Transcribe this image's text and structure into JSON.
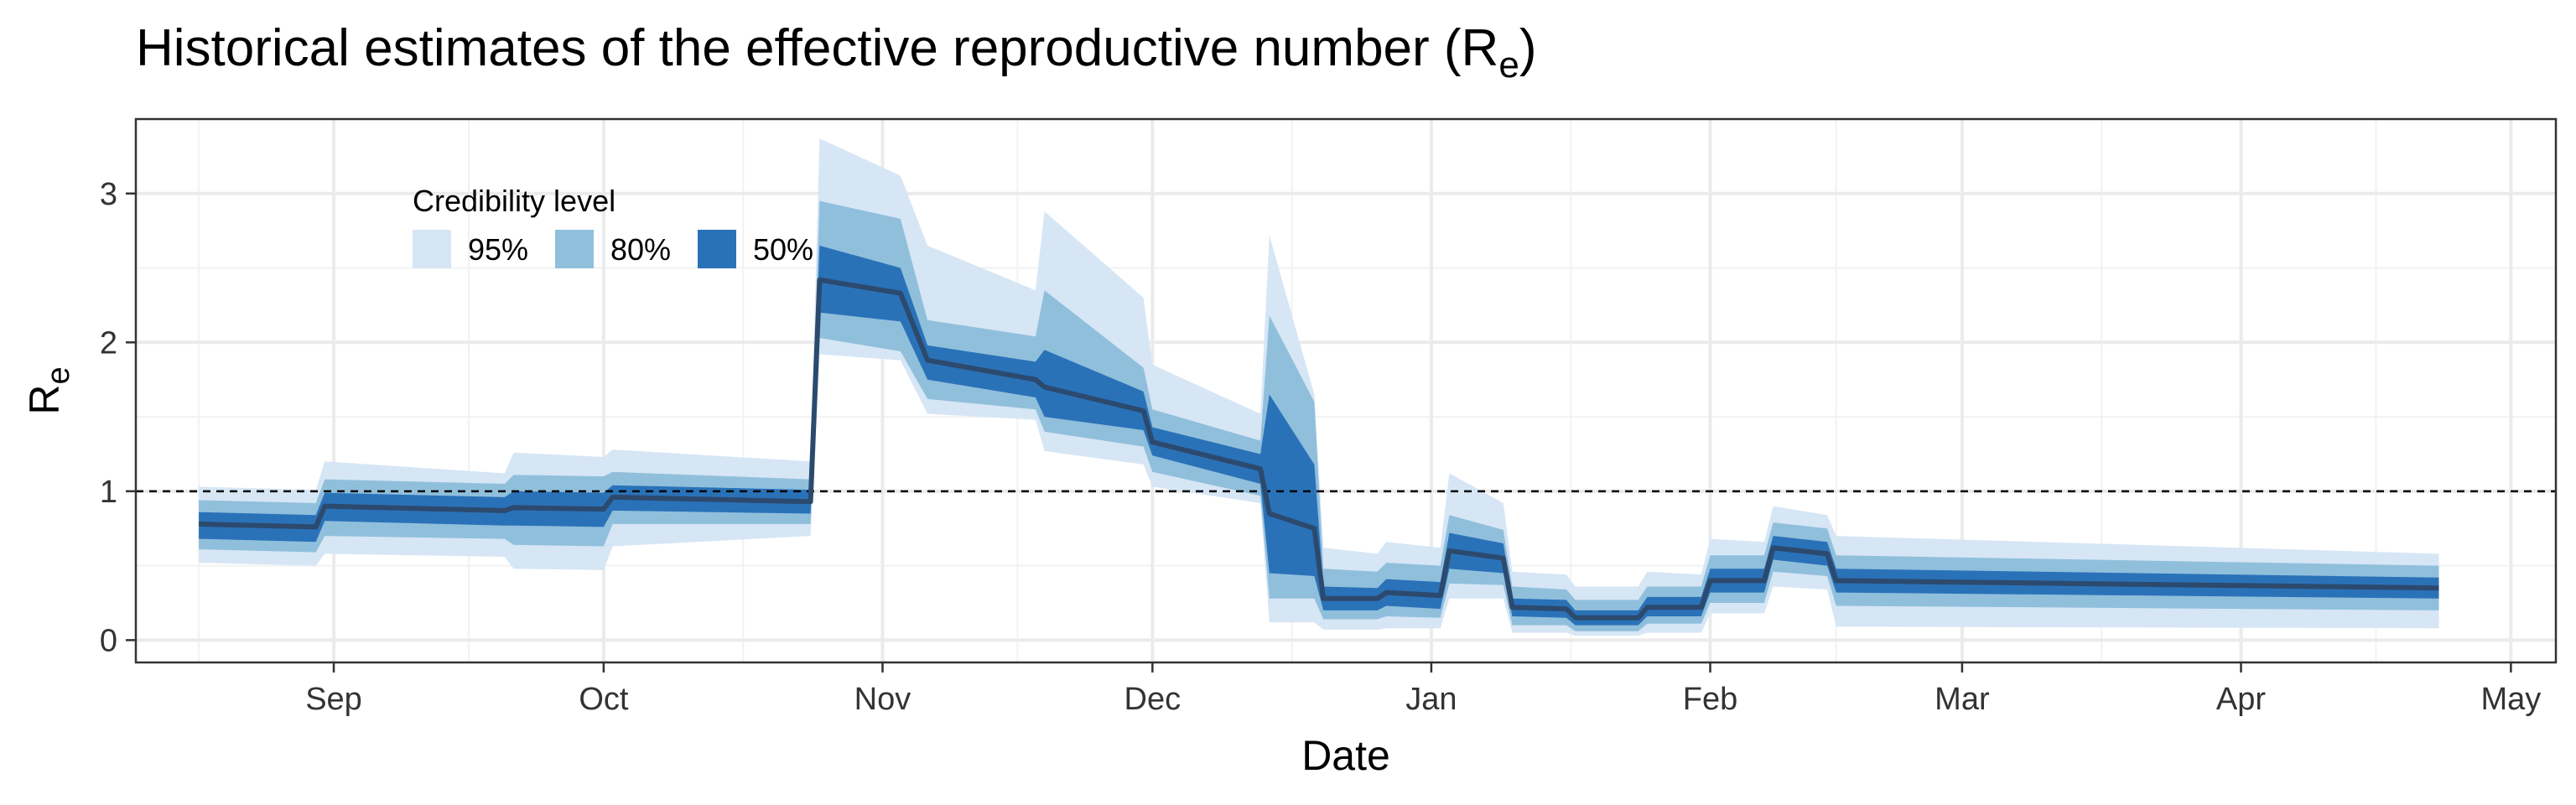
{
  "chart_data": {
    "type": "area",
    "title": "Historical estimates of the effective reproductive number (R",
    "title_subscript": "e",
    "title_suffix": ")",
    "xlabel": "Date",
    "ylabel": "R",
    "ylabel_subscript": "e",
    "xlim": [
      "2020-08-10",
      "2021-05-06"
    ],
    "ylim": [
      -0.15,
      3.5
    ],
    "x_ticks": [
      {
        "date": "2020-09-01",
        "label": "Sep"
      },
      {
        "date": "2020-10-01",
        "label": "Oct"
      },
      {
        "date": "2020-11-01",
        "label": "Nov"
      },
      {
        "date": "2020-12-01",
        "label": "Dec"
      },
      {
        "date": "2021-01-01",
        "label": "Jan"
      },
      {
        "date": "2021-02-01",
        "label": "Feb"
      },
      {
        "date": "2021-03-01",
        "label": "Mar"
      },
      {
        "date": "2021-04-01",
        "label": "Apr"
      },
      {
        "date": "2021-05-01",
        "label": "May"
      }
    ],
    "y_ticks": [
      0,
      1,
      2,
      3
    ],
    "grid": true,
    "reference_line": {
      "y": 1,
      "style": "dashed"
    },
    "legend": {
      "title": "Credibility level",
      "position": "top-left",
      "entries": [
        {
          "label": "95%",
          "color": "#d6e6f5"
        },
        {
          "label": "80%",
          "color": "#90bfdc"
        },
        {
          "label": "50%",
          "color": "#2a72b8"
        }
      ]
    },
    "colors": {
      "median": "#2c4a6e",
      "band95": "#d6e6f5",
      "band80": "#90bfdc",
      "band50": "#2a72b8"
    },
    "series": [
      {
        "x": "2020-08-17",
        "median": 0.78,
        "lo50": 0.68,
        "hi50": 0.86,
        "lo80": 0.61,
        "hi80": 0.94,
        "lo95": 0.52,
        "hi95": 1.03
      },
      {
        "x": "2020-08-30",
        "median": 0.76,
        "lo50": 0.66,
        "hi50": 0.84,
        "lo80": 0.59,
        "hi80": 0.92,
        "lo95": 0.5,
        "hi95": 1.01
      },
      {
        "x": "2020-08-31",
        "median": 0.9,
        "lo50": 0.8,
        "hi50": 0.99,
        "lo80": 0.7,
        "hi80": 1.08,
        "lo95": 0.58,
        "hi95": 1.2
      },
      {
        "x": "2020-09-20",
        "median": 0.87,
        "lo50": 0.77,
        "hi50": 0.96,
        "lo80": 0.68,
        "hi80": 1.05,
        "lo95": 0.56,
        "hi95": 1.12
      },
      {
        "x": "2020-09-21",
        "median": 0.89,
        "lo50": 0.77,
        "hi50": 1.0,
        "lo80": 0.64,
        "hi80": 1.11,
        "lo95": 0.48,
        "hi95": 1.26
      },
      {
        "x": "2020-10-01",
        "median": 0.88,
        "lo50": 0.76,
        "hi50": 0.99,
        "lo80": 0.63,
        "hi80": 1.1,
        "lo95": 0.47,
        "hi95": 1.23
      },
      {
        "x": "2020-10-02",
        "median": 0.96,
        "lo50": 0.87,
        "hi50": 1.04,
        "lo80": 0.78,
        "hi80": 1.13,
        "lo95": 0.63,
        "hi95": 1.28
      },
      {
        "x": "2020-10-24",
        "median": 0.93,
        "lo50": 0.85,
        "hi50": 1.01,
        "lo80": 0.78,
        "hi80": 1.08,
        "lo95": 0.7,
        "hi95": 1.2
      },
      {
        "x": "2020-10-25",
        "median": 2.42,
        "lo50": 2.2,
        "hi50": 2.65,
        "lo80": 2.03,
        "hi80": 2.95,
        "lo95": 1.92,
        "hi95": 3.37
      },
      {
        "x": "2020-11-03",
        "median": 2.33,
        "lo50": 2.14,
        "hi50": 2.5,
        "lo80": 1.94,
        "hi80": 2.83,
        "lo95": 1.88,
        "hi95": 3.12
      },
      {
        "x": "2020-11-06",
        "median": 1.88,
        "lo50": 1.75,
        "hi50": 1.98,
        "lo80": 1.62,
        "hi80": 2.15,
        "lo95": 1.52,
        "hi95": 2.65
      },
      {
        "x": "2020-11-18",
        "median": 1.75,
        "lo50": 1.63,
        "hi50": 1.87,
        "lo80": 1.55,
        "hi80": 2.04,
        "lo95": 1.48,
        "hi95": 2.35
      },
      {
        "x": "2020-11-19",
        "median": 1.7,
        "lo50": 1.5,
        "hi50": 1.95,
        "lo80": 1.4,
        "hi80": 2.35,
        "lo95": 1.27,
        "hi95": 2.88
      },
      {
        "x": "2020-11-30",
        "median": 1.54,
        "lo50": 1.41,
        "hi50": 1.67,
        "lo80": 1.3,
        "hi80": 1.83,
        "lo95": 1.18,
        "hi95": 2.3
      },
      {
        "x": "2020-12-01",
        "median": 1.33,
        "lo50": 1.24,
        "hi50": 1.43,
        "lo80": 1.13,
        "hi80": 1.55,
        "lo95": 1.03,
        "hi95": 1.85
      },
      {
        "x": "2020-12-13",
        "median": 1.15,
        "lo50": 1.05,
        "hi50": 1.25,
        "lo80": 0.97,
        "hi80": 1.34,
        "lo95": 0.92,
        "hi95": 1.52
      },
      {
        "x": "2020-12-14",
        "median": 0.85,
        "lo50": 0.45,
        "hi50": 1.65,
        "lo80": 0.28,
        "hi80": 2.18,
        "lo95": 0.12,
        "hi95": 2.72
      },
      {
        "x": "2020-12-19",
        "median": 0.75,
        "lo50": 0.43,
        "hi50": 1.18,
        "lo80": 0.28,
        "hi80": 1.6,
        "lo95": 0.12,
        "hi95": 1.65
      },
      {
        "x": "2020-12-20",
        "median": 0.28,
        "lo50": 0.2,
        "hi50": 0.36,
        "lo80": 0.14,
        "hi80": 0.48,
        "lo95": 0.07,
        "hi95": 0.62
      },
      {
        "x": "2020-12-26",
        "median": 0.28,
        "lo50": 0.2,
        "hi50": 0.35,
        "lo80": 0.14,
        "hi80": 0.46,
        "lo95": 0.07,
        "hi95": 0.58
      },
      {
        "x": "2020-12-27",
        "median": 0.32,
        "lo50": 0.23,
        "hi50": 0.41,
        "lo80": 0.16,
        "hi80": 0.52,
        "lo95": 0.08,
        "hi95": 0.66
      },
      {
        "x": "2021-01-02",
        "median": 0.3,
        "lo50": 0.21,
        "hi50": 0.39,
        "lo80": 0.15,
        "hi80": 0.5,
        "lo95": 0.08,
        "hi95": 0.62
      },
      {
        "x": "2021-01-03",
        "median": 0.6,
        "lo50": 0.48,
        "hi50": 0.72,
        "lo80": 0.38,
        "hi80": 0.84,
        "lo95": 0.28,
        "hi95": 1.12
      },
      {
        "x": "2021-01-09",
        "median": 0.55,
        "lo50": 0.45,
        "hi50": 0.65,
        "lo80": 0.37,
        "hi80": 0.74,
        "lo95": 0.28,
        "hi95": 0.92
      },
      {
        "x": "2021-01-10",
        "median": 0.22,
        "lo50": 0.16,
        "hi50": 0.28,
        "lo80": 0.1,
        "hi80": 0.36,
        "lo95": 0.05,
        "hi95": 0.46
      },
      {
        "x": "2021-01-16",
        "median": 0.21,
        "lo50": 0.15,
        "hi50": 0.27,
        "lo80": 0.1,
        "hi80": 0.34,
        "lo95": 0.05,
        "hi95": 0.44
      },
      {
        "x": "2021-01-17",
        "median": 0.15,
        "lo50": 0.1,
        "hi50": 0.2,
        "lo80": 0.06,
        "hi80": 0.27,
        "lo95": 0.03,
        "hi95": 0.36
      },
      {
        "x": "2021-01-24",
        "median": 0.15,
        "lo50": 0.1,
        "hi50": 0.2,
        "lo80": 0.06,
        "hi80": 0.27,
        "lo95": 0.03,
        "hi95": 0.36
      },
      {
        "x": "2021-01-25",
        "median": 0.22,
        "lo50": 0.16,
        "hi50": 0.29,
        "lo80": 0.11,
        "hi80": 0.36,
        "lo95": 0.05,
        "hi95": 0.46
      },
      {
        "x": "2021-01-31",
        "median": 0.22,
        "lo50": 0.16,
        "hi50": 0.29,
        "lo80": 0.11,
        "hi80": 0.36,
        "lo95": 0.05,
        "hi95": 0.44
      },
      {
        "x": "2021-02-01",
        "median": 0.4,
        "lo50": 0.32,
        "hi50": 0.48,
        "lo80": 0.25,
        "hi80": 0.57,
        "lo95": 0.18,
        "hi95": 0.68
      },
      {
        "x": "2021-02-07",
        "median": 0.4,
        "lo50": 0.32,
        "hi50": 0.48,
        "lo80": 0.25,
        "hi80": 0.57,
        "lo95": 0.18,
        "hi95": 0.66
      },
      {
        "x": "2021-02-08",
        "median": 0.62,
        "lo50": 0.54,
        "hi50": 0.7,
        "lo80": 0.46,
        "hi80": 0.79,
        "lo95": 0.36,
        "hi95": 0.9
      },
      {
        "x": "2021-02-14",
        "median": 0.58,
        "lo50": 0.5,
        "hi50": 0.66,
        "lo80": 0.43,
        "hi80": 0.75,
        "lo95": 0.34,
        "hi95": 0.84
      },
      {
        "x": "2021-02-15",
        "median": 0.4,
        "lo50": 0.32,
        "hi50": 0.48,
        "lo80": 0.23,
        "hi80": 0.57,
        "lo95": 0.09,
        "hi95": 0.7
      },
      {
        "x": "2021-04-23",
        "median": 0.35,
        "lo50": 0.28,
        "hi50": 0.42,
        "lo80": 0.2,
        "hi80": 0.5,
        "lo95": 0.08,
        "hi95": 0.58
      }
    ]
  }
}
